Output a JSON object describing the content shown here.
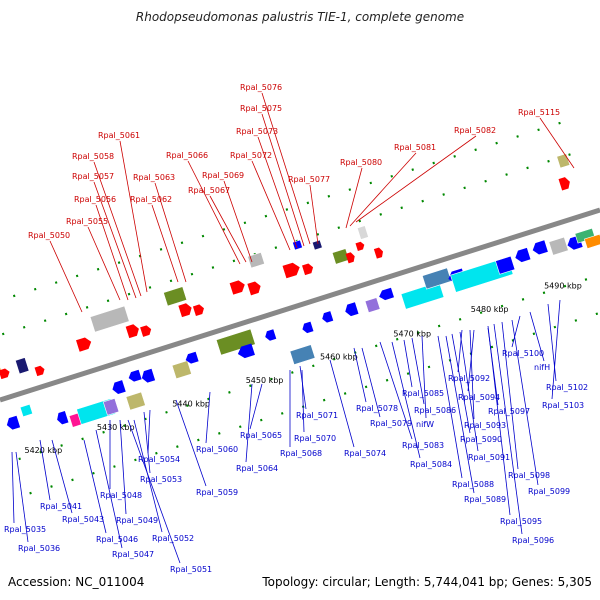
{
  "title": "Rhodopseudomonas palustris TIE-1, complete genome",
  "accession_text": "Accession: NC_011004",
  "stats_text": "Topology: circular; Length: 5,744,041 bp; Genes: 5,305",
  "colors": {
    "backbone": "#888888",
    "forward_label": "#cc0000",
    "reverse_label": "#0000cc",
    "forward_arrow": "#ff0000",
    "reverse_arrow": "#0000ff",
    "tick": "#008800",
    "scale_label": "#000000"
  },
  "scale_ticks": [
    "5420 kbp",
    "5430 kbp",
    "5440 kbp",
    "5450 kbp",
    "5460 kbp",
    "5470 kbp",
    "5480 kbp",
    "5490 kbp"
  ],
  "forward_genes": [
    "Rpal_5050",
    "Rpal_5055",
    "Rpal_5056",
    "Rpal_5057",
    "Rpal_5058",
    "Rpal_5061",
    "Rpal_5062",
    "Rpal_5063",
    "Rpal_5066",
    "Rpal_5067",
    "Rpal_5069",
    "Rpal_5072",
    "Rpal_5073",
    "Rpal_5075",
    "Rpal_5076",
    "Rpal_5077",
    "Rpal_5080",
    "Rpal_5081",
    "Rpal_5082",
    "Rpal_5115"
  ],
  "reverse_genes": [
    "Rpal_5035",
    "Rpal_5036",
    "Rpal_5041",
    "Rpal_5043",
    "Rpal_5046",
    "Rpal_5047",
    "Rpal_5048",
    "Rpal_5049",
    "Rpal_5051",
    "Rpal_5052",
    "Rpal_5053",
    "Rpal_5054",
    "Rpal_5059",
    "Rpal_5060",
    "Rpal_5064",
    "Rpal_5065",
    "Rpal_5068",
    "Rpal_5070",
    "Rpal_5071",
    "Rpal_5074",
    "Rpal_5078",
    "Rpal_5079",
    "Rpal_5083",
    "Rpal_5084",
    "Rpal_5085",
    "Rpal_5086",
    "nifW",
    "Rpal_5088",
    "Rpal_5089",
    "Rpal_5090",
    "Rpal_5091",
    "Rpal_5092",
    "Rpal_5093",
    "Rpal_5094",
    "Rpal_5095",
    "Rpal_5096",
    "Rpal_5097",
    "Rpal_5098",
    "Rpal_5099",
    "Rpal_5100",
    "nifH",
    "Rpal_5102",
    "Rpal_5103"
  ]
}
